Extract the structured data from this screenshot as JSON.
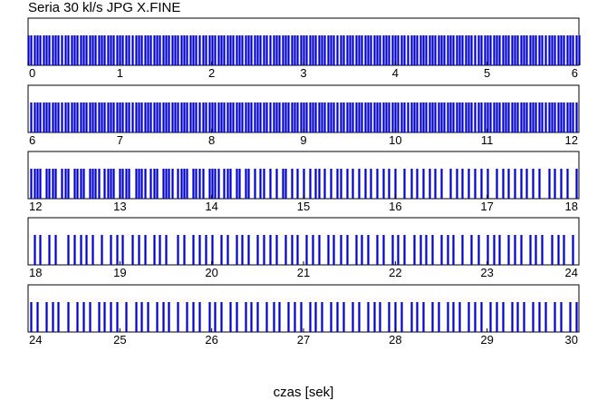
{
  "chart_data": {
    "type": "bar",
    "title": "Seria 30 kl/s JPG X.FINE",
    "xlabel": "czas [sek]",
    "ylabel": "",
    "xlim": [
      0,
      30
    ],
    "grid": false,
    "legend": "none",
    "series_color": "#0000cc",
    "rows": [
      {
        "range": [
          0,
          6
        ],
        "tick_labels": [
          "0",
          "1",
          "2",
          "3",
          "4",
          "5",
          "6"
        ],
        "frame_times": [
          0.0,
          0.03,
          0.07,
          0.1,
          0.13,
          0.17,
          0.2,
          0.23,
          0.27,
          0.3,
          0.33,
          0.37,
          0.4,
          0.43,
          0.47,
          0.5,
          0.53,
          0.57,
          0.6,
          0.63,
          0.67,
          0.7,
          0.73,
          0.77,
          0.8,
          0.83,
          0.87,
          0.9,
          0.93,
          0.97,
          1.0,
          1.03,
          1.07,
          1.1,
          1.13,
          1.17,
          1.2,
          1.23,
          1.27,
          1.3,
          1.33,
          1.37,
          1.4,
          1.43,
          1.47,
          1.5,
          1.53,
          1.57,
          1.6,
          1.63,
          1.67,
          1.7,
          1.73,
          1.77,
          1.8,
          1.83,
          1.87,
          1.9,
          1.93,
          1.97,
          2.0,
          2.03,
          2.07,
          2.1,
          2.13,
          2.17,
          2.2,
          2.23,
          2.27,
          2.3,
          2.33,
          2.37,
          2.4,
          2.43,
          2.47,
          2.5,
          2.53,
          2.57,
          2.6,
          2.63,
          2.67,
          2.7,
          2.73,
          2.77,
          2.8,
          2.83,
          2.87,
          2.9,
          2.93,
          2.97,
          3.0,
          3.03,
          3.07,
          3.1,
          3.13,
          3.17,
          3.2,
          3.23,
          3.27,
          3.3,
          3.33,
          3.37,
          3.4,
          3.43,
          3.47,
          3.5,
          3.53,
          3.57,
          3.6,
          3.63,
          3.67,
          3.7,
          3.73,
          3.77,
          3.8,
          3.83,
          3.87,
          3.9,
          3.93,
          3.97,
          4.0,
          4.03,
          4.07,
          4.1,
          4.13,
          4.17,
          4.2,
          4.23,
          4.27,
          4.3,
          4.33,
          4.37,
          4.4,
          4.43,
          4.47,
          4.5,
          4.53,
          4.57,
          4.6,
          4.63,
          4.67,
          4.7,
          4.73,
          4.77,
          4.8,
          4.83,
          4.87,
          4.9,
          4.93,
          4.97,
          5.0,
          5.03,
          5.07,
          5.1,
          5.13,
          5.17,
          5.2,
          5.23,
          5.27,
          5.3,
          5.33,
          5.37,
          5.4,
          5.43,
          5.47,
          5.5,
          5.53,
          5.57,
          5.6,
          5.63,
          5.67,
          5.7,
          5.73,
          5.77,
          5.8,
          5.83,
          5.87,
          5.9,
          5.93,
          5.97,
          6.0
        ]
      },
      {
        "range": [
          6,
          12
        ],
        "tick_labels": [
          "6",
          "7",
          "8",
          "9",
          "10",
          "11",
          "12"
        ],
        "frame_times": [
          6.03,
          6.07,
          6.1,
          6.13,
          6.17,
          6.2,
          6.23,
          6.27,
          6.3,
          6.33,
          6.37,
          6.4,
          6.43,
          6.47,
          6.5,
          6.53,
          6.57,
          6.6,
          6.63,
          6.67,
          6.7,
          6.73,
          6.77,
          6.8,
          6.83,
          6.87,
          6.9,
          6.93,
          6.97,
          7.0,
          7.03,
          7.07,
          7.1,
          7.13,
          7.17,
          7.2,
          7.23,
          7.27,
          7.3,
          7.33,
          7.37,
          7.4,
          7.43,
          7.47,
          7.5,
          7.53,
          7.57,
          7.6,
          7.63,
          7.67,
          7.7,
          7.73,
          7.77,
          7.8,
          7.83,
          7.87,
          7.9,
          7.93,
          7.97,
          8.0,
          8.03,
          8.07,
          8.1,
          8.13,
          8.17,
          8.2,
          8.23,
          8.27,
          8.3,
          8.33,
          8.37,
          8.4,
          8.43,
          8.47,
          8.5,
          8.53,
          8.57,
          8.6,
          8.63,
          8.67,
          8.7,
          8.73,
          8.77,
          8.8,
          8.83,
          8.87,
          8.9,
          8.93,
          8.97,
          9.0,
          9.03,
          9.07,
          9.1,
          9.13,
          9.17,
          9.2,
          9.23,
          9.27,
          9.3,
          9.33,
          9.37,
          9.4,
          9.43,
          9.47,
          9.5,
          9.53,
          9.57,
          9.6,
          9.63,
          9.67,
          9.7,
          9.73,
          9.77,
          9.8,
          9.83,
          9.87,
          9.9,
          9.93,
          9.97,
          10.0,
          10.03,
          10.07,
          10.1,
          10.13,
          10.17,
          10.2,
          10.23,
          10.27,
          10.3,
          10.33,
          10.37,
          10.4,
          10.43,
          10.47,
          10.5,
          10.53,
          10.57,
          10.6,
          10.63,
          10.67,
          10.7,
          10.73,
          10.77,
          10.8,
          10.83,
          10.87,
          10.9,
          10.93,
          10.97,
          11.0,
          11.03,
          11.07,
          11.1,
          11.13,
          11.17,
          11.2,
          11.23,
          11.27,
          11.3,
          11.33,
          11.37,
          11.4,
          11.43,
          11.47,
          11.5,
          11.53,
          11.57,
          11.6,
          11.63,
          11.67,
          11.7,
          11.73,
          11.77,
          11.8,
          11.83,
          11.87,
          11.9,
          11.93,
          11.97
        ]
      },
      {
        "range": [
          12,
          18
        ],
        "tick_labels": [
          "12",
          "13",
          "14",
          "15",
          "16",
          "17",
          "18"
        ],
        "frame_times": [
          12.03,
          12.07,
          12.1,
          12.13,
          12.2,
          12.23,
          12.27,
          12.3,
          12.37,
          12.4,
          12.43,
          12.5,
          12.53,
          12.57,
          12.6,
          12.67,
          12.7,
          12.73,
          12.77,
          12.83,
          12.87,
          12.9,
          12.93,
          13.0,
          13.03,
          13.07,
          13.1,
          13.17,
          13.2,
          13.23,
          13.27,
          13.33,
          13.37,
          13.4,
          13.47,
          13.5,
          13.53,
          13.57,
          13.63,
          13.67,
          13.7,
          13.73,
          13.8,
          13.83,
          13.87,
          13.9,
          13.97,
          14.0,
          14.03,
          14.07,
          14.13,
          14.17,
          14.2,
          14.27,
          14.3,
          14.37,
          14.4,
          14.47,
          14.53,
          14.57,
          14.63,
          14.7,
          14.77,
          14.8,
          14.87,
          14.93,
          15.0,
          15.07,
          15.13,
          15.17,
          15.23,
          15.3,
          15.37,
          15.4,
          15.47,
          15.53,
          15.6,
          15.67,
          15.73,
          15.8,
          15.87,
          15.93,
          16.0,
          16.1,
          16.17,
          16.23,
          16.3,
          16.37,
          16.43,
          16.5,
          16.6,
          16.67,
          16.73,
          16.8,
          16.87,
          16.93,
          17.0,
          17.1,
          17.17,
          17.23,
          17.3,
          17.37,
          17.43,
          17.5,
          17.57,
          17.67,
          17.73,
          17.8,
          17.87,
          17.97
        ]
      },
      {
        "range": [
          18,
          24
        ],
        "tick_labels": [
          "18",
          "19",
          "20",
          "21",
          "22",
          "23",
          "24"
        ],
        "frame_times": [
          18.07,
          18.13,
          18.23,
          18.3,
          18.43,
          18.5,
          18.57,
          18.63,
          18.7,
          18.8,
          18.9,
          18.97,
          19.03,
          19.13,
          19.2,
          19.27,
          19.37,
          19.43,
          19.5,
          19.63,
          19.7,
          19.8,
          19.87,
          19.93,
          20.0,
          20.1,
          20.17,
          20.27,
          20.33,
          20.4,
          20.5,
          20.57,
          20.63,
          20.7,
          20.8,
          20.87,
          20.93,
          21.03,
          21.1,
          21.17,
          21.27,
          21.33,
          21.4,
          21.47,
          21.57,
          21.63,
          21.7,
          21.8,
          21.87,
          21.97,
          22.03,
          22.1,
          22.2,
          22.27,
          22.33,
          22.4,
          22.5,
          22.57,
          22.63,
          22.73,
          22.83,
          22.9,
          23.0,
          23.07,
          23.13,
          23.23,
          23.3,
          23.37,
          23.47,
          23.53,
          23.6,
          23.7,
          23.77,
          23.83,
          23.93
        ]
      },
      {
        "range": [
          24,
          30
        ],
        "tick_labels": [
          "24",
          "25",
          "26",
          "27",
          "28",
          "29",
          "30"
        ],
        "frame_times": [
          24.03,
          24.1,
          24.2,
          24.27,
          24.33,
          24.43,
          24.53,
          24.6,
          24.67,
          24.77,
          24.83,
          24.9,
          24.97,
          25.07,
          25.17,
          25.23,
          25.3,
          25.4,
          25.47,
          25.53,
          25.63,
          25.73,
          25.8,
          25.87,
          25.97,
          26.03,
          26.1,
          26.2,
          26.27,
          26.37,
          26.43,
          26.5,
          26.6,
          26.67,
          26.73,
          26.83,
          26.9,
          26.97,
          27.07,
          27.13,
          27.2,
          27.3,
          27.37,
          27.43,
          27.53,
          27.6,
          27.7,
          27.77,
          27.83,
          27.93,
          28.0,
          28.07,
          28.17,
          28.23,
          28.3,
          28.4,
          28.47,
          28.57,
          28.63,
          28.7,
          28.8,
          28.87,
          28.93,
          29.03,
          29.1,
          29.17,
          29.27,
          29.33,
          29.4,
          29.5,
          29.57,
          29.63,
          29.73,
          29.8,
          29.9,
          29.97
        ]
      }
    ]
  }
}
